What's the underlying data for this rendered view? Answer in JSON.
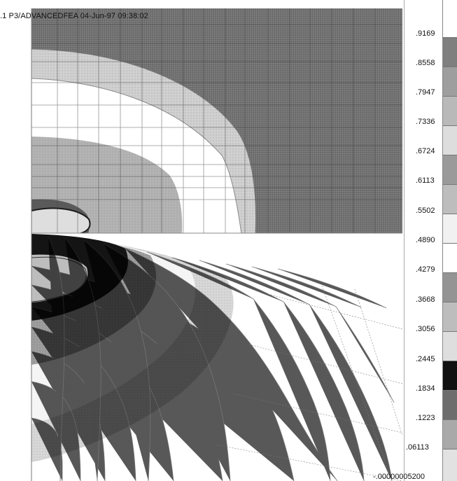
{
  "title": ".1 P3/ADVANCEDFEA 04-Jun-97 09:38:02",
  "legend": {
    "labels": [
      ".9169",
      ".8558",
      ".7947",
      ".7336",
      ".6724",
      ".6113",
      ".5502",
      ".4890",
      ".4279",
      ".3668",
      ".3056",
      ".2445",
      ".1834",
      ".1223",
      ".06113",
      "-.00000005200"
    ],
    "swatch_colors": [
      "#7f7f7f",
      "#9e9e9e",
      "#b9b9b9",
      "#dddddd",
      "#9a9a9a",
      "#bdbdbd",
      "#f1f1f1",
      "#ffffff",
      "#949494",
      "#bdbdbd",
      "#dedede",
      "#111111",
      "#6d6d6d",
      "#a9a9a9",
      "#e2e2e2",
      "#ffffff"
    ]
  }
}
